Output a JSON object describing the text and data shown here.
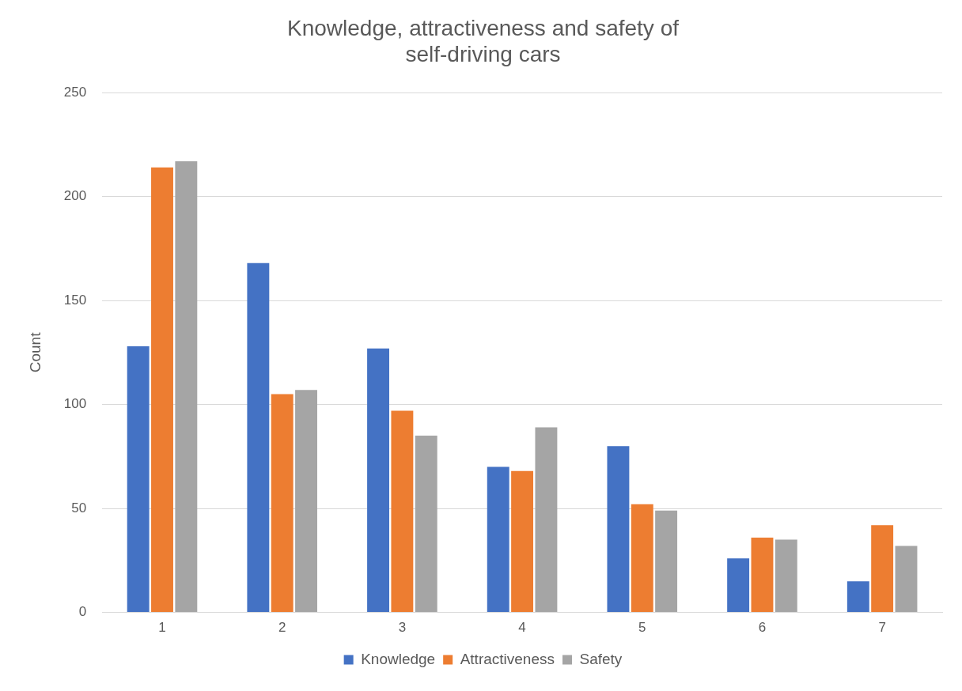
{
  "chart_data": {
    "type": "bar",
    "title": [
      "Knowledge, attractiveness and safety of",
      "self-driving cars"
    ],
    "ylabel": "Count",
    "categories": [
      "1",
      "2",
      "3",
      "4",
      "5",
      "6",
      "7"
    ],
    "series": [
      {
        "name": "Knowledge",
        "color": "#4472c4",
        "values": [
          128,
          168,
          127,
          70,
          80,
          26,
          15
        ]
      },
      {
        "name": "Attractiveness",
        "color": "#ed7d31",
        "values": [
          214,
          105,
          97,
          68,
          52,
          36,
          42
        ]
      },
      {
        "name": "Safety",
        "color": "#a5a5a5",
        "values": [
          217,
          107,
          85,
          89,
          49,
          35,
          32
        ]
      }
    ],
    "ylim": [
      0,
      250
    ],
    "yticks": [
      0,
      50,
      100,
      150,
      200,
      250
    ],
    "grid": "y",
    "legend": "bottom"
  }
}
